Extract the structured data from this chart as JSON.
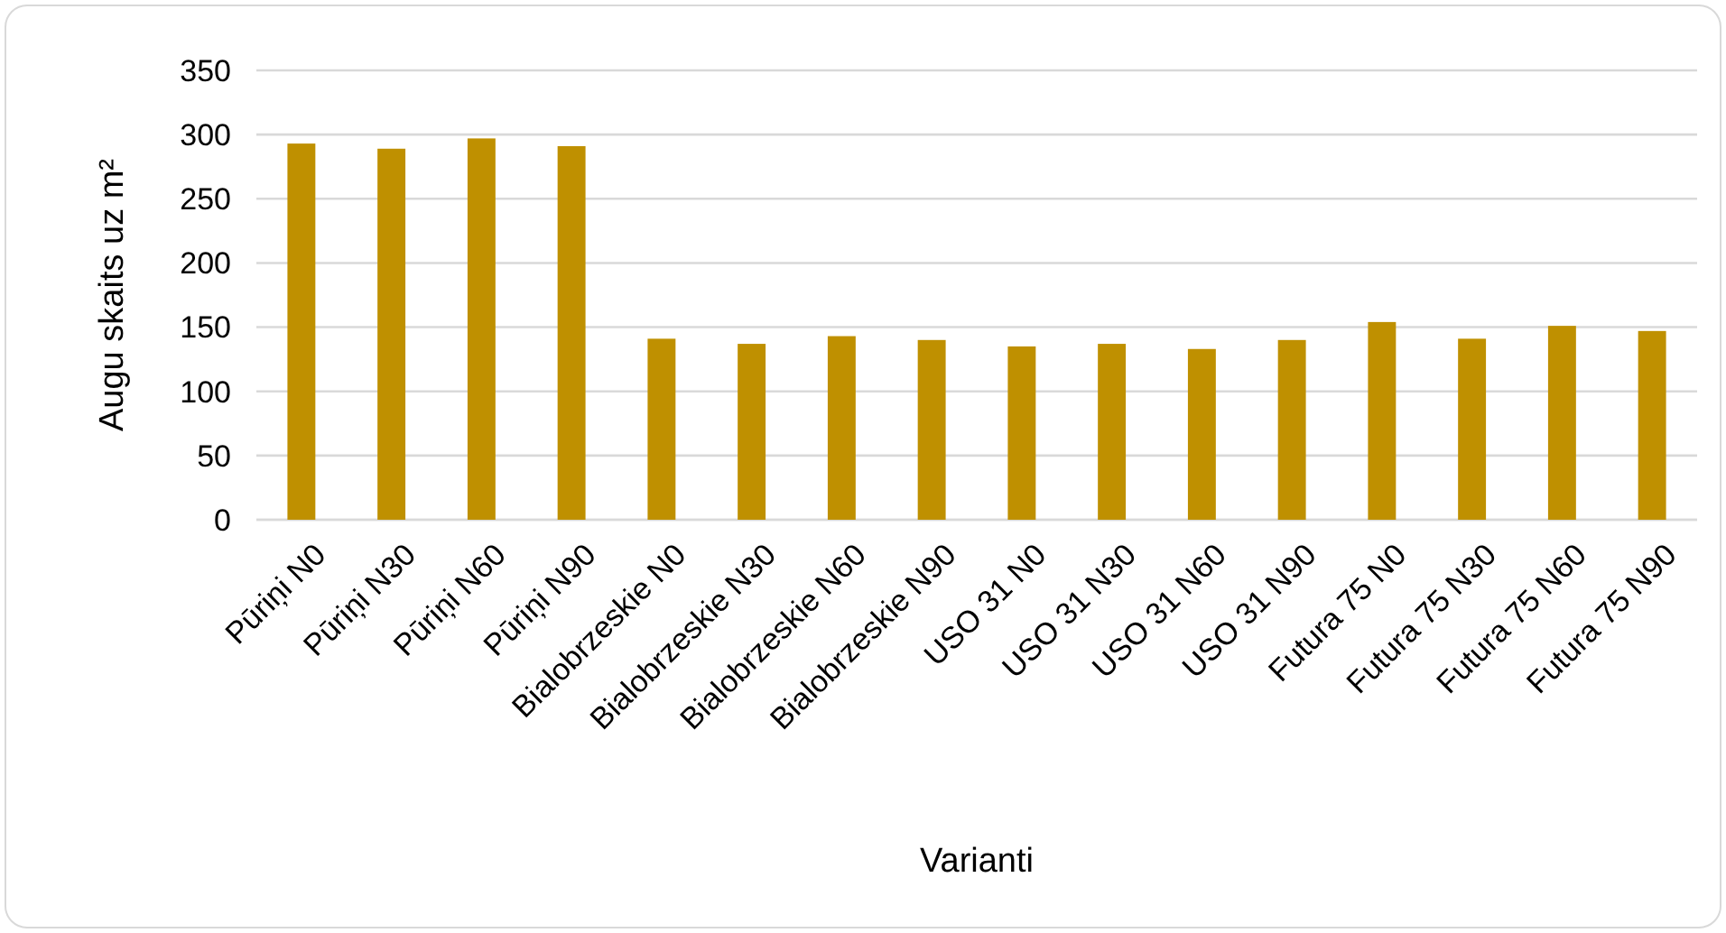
{
  "chart_data": {
    "type": "bar",
    "xlabel": "Varianti",
    "ylabel": "Augu skaits uz m²",
    "categories": [
      "Pūriņi N0",
      "Pūriņi N30",
      "Pūriņi N60",
      "Pūriņi N90",
      "Bialobrzeskie N0",
      "Bialobrzeskie N30",
      "Bialobrzeskie N60",
      "Bialobrzeskie N90",
      "USO 31 N0",
      "USO 31 N30",
      "USO 31 N60",
      "USO 31 N90",
      "Futura 75 N0",
      "Futura 75 N30",
      "Futura 75 N60",
      "Futura 75 N90"
    ],
    "values": [
      293,
      289,
      297,
      291,
      141,
      137,
      143,
      140,
      135,
      137,
      133,
      140,
      154,
      141,
      151,
      147
    ],
    "color": "#bf9000",
    "ylim": [
      0,
      350
    ],
    "yticks": [
      0,
      50,
      100,
      150,
      200,
      250,
      300,
      350
    ],
    "grid": "y"
  }
}
